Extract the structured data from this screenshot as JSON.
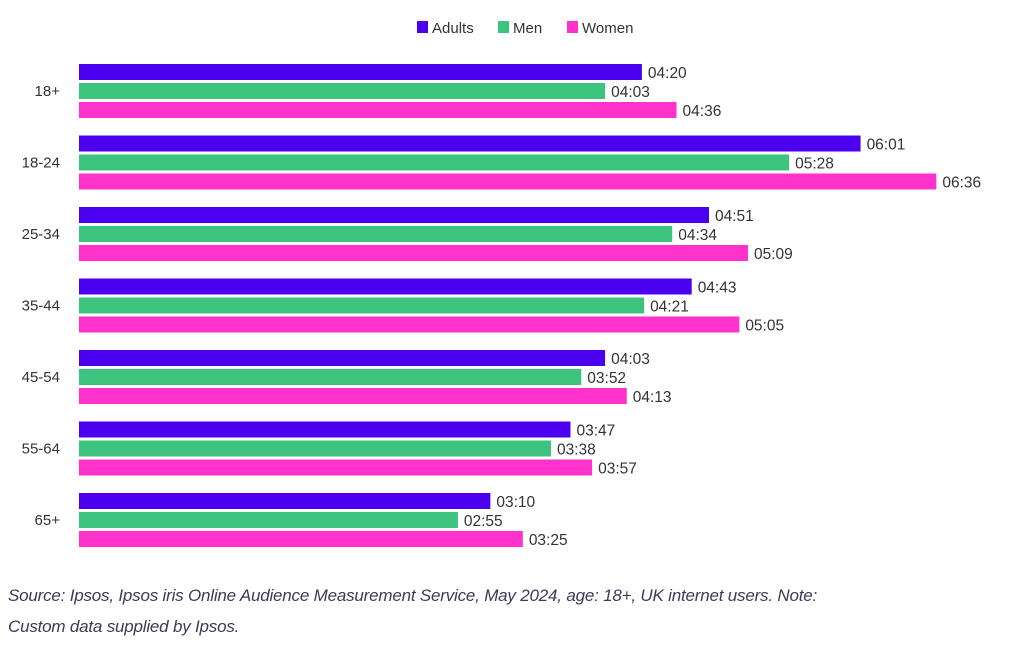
{
  "chart_data": {
    "type": "bar",
    "orientation": "horizontal",
    "title": "",
    "xlabel": "",
    "ylabel": "",
    "value_format": "mm:ss",
    "categories": [
      "18+",
      "18-24",
      "25-34",
      "35-44",
      "45-54",
      "55-64",
      "65+"
    ],
    "series": [
      {
        "name": "Adults",
        "color": "#4b00f0",
        "values": [
          "04:20",
          "06:01",
          "04:51",
          "04:43",
          "04:03",
          "03:47",
          "03:10"
        ]
      },
      {
        "name": "Men",
        "color": "#3cc47f",
        "values": [
          "04:03",
          "05:28",
          "04:34",
          "04:21",
          "03:52",
          "03:38",
          "02:55"
        ]
      },
      {
        "name": "Women",
        "color": "#ff33cc",
        "values": [
          "04:36",
          "06:36",
          "05:09",
          "05:05",
          "04:13",
          "03:57",
          "03:25"
        ]
      }
    ],
    "legend_position": "top",
    "grid": false,
    "axis_visible": false
  },
  "source": {
    "line1": "Source: Ipsos, Ipsos iris Online Audience Measurement Service, May 2024, age: 18+, UK internet users. Note:",
    "line2": "Custom data supplied by Ipsos."
  }
}
